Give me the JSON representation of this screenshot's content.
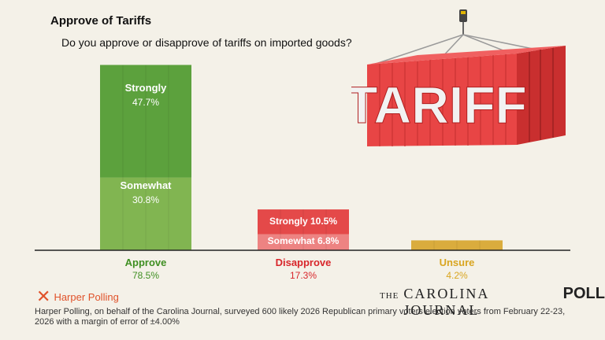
{
  "header": {
    "title": "Approve of Tariffs",
    "subtitle": "Do you approve or disapprove of tariffs on imported goods?"
  },
  "illustration": {
    "container_text": "TARIFF",
    "icon": "shipping-container-icon"
  },
  "chart_data": {
    "type": "bar",
    "stacked": true,
    "title": "Approve of Tariffs",
    "categories": [
      "Approve",
      "Disapprove",
      "Unsure"
    ],
    "category_labels": [
      "Approve",
      "Disapprove",
      "Unsure"
    ],
    "totals": [
      "78.5%",
      "17.3%",
      "4.2%"
    ],
    "total_values": [
      78.5,
      17.3,
      4.2
    ],
    "series": [
      {
        "name": "Somewhat",
        "values": [
          30.8,
          6.8,
          0
        ]
      },
      {
        "name": "Strongly",
        "values": [
          47.7,
          10.5,
          0
        ]
      },
      {
        "name": "Unsure",
        "values": [
          0,
          0,
          4.2
        ]
      }
    ],
    "segment_labels": {
      "approve_strongly_name": "Strongly",
      "approve_strongly_value": "47.7%",
      "approve_somewhat_name": "Somewhat",
      "approve_somewhat_value": "30.8%",
      "disapprove_strongly": "Strongly 10.5%",
      "disapprove_somewhat": "Somewhat 6.8%"
    },
    "colors": {
      "approve": "#4e9a2e",
      "approve_somewhat": "#76b043",
      "disapprove": "#e23b3b",
      "disapprove_somewhat": "#ec7a78",
      "unsure": "#d7a62e",
      "approve_text": "#3f8f22",
      "disapprove_text": "#d8262b",
      "unsure_text": "#d9a520"
    },
    "ylim": [
      0,
      100
    ],
    "xlabel": "",
    "ylabel": ""
  },
  "footer": {
    "pollster": "Harper Polling",
    "publication_the": "THE",
    "publication_name": "CAROLINA JOURNAL",
    "publication_poll": "POLL",
    "note": "Harper Polling, on behalf of the Carolina Journal, surveyed 600 likely 2026 Republican primary voters election voters from February 22-23, 2026 with a margin of error of ±4.00%"
  }
}
